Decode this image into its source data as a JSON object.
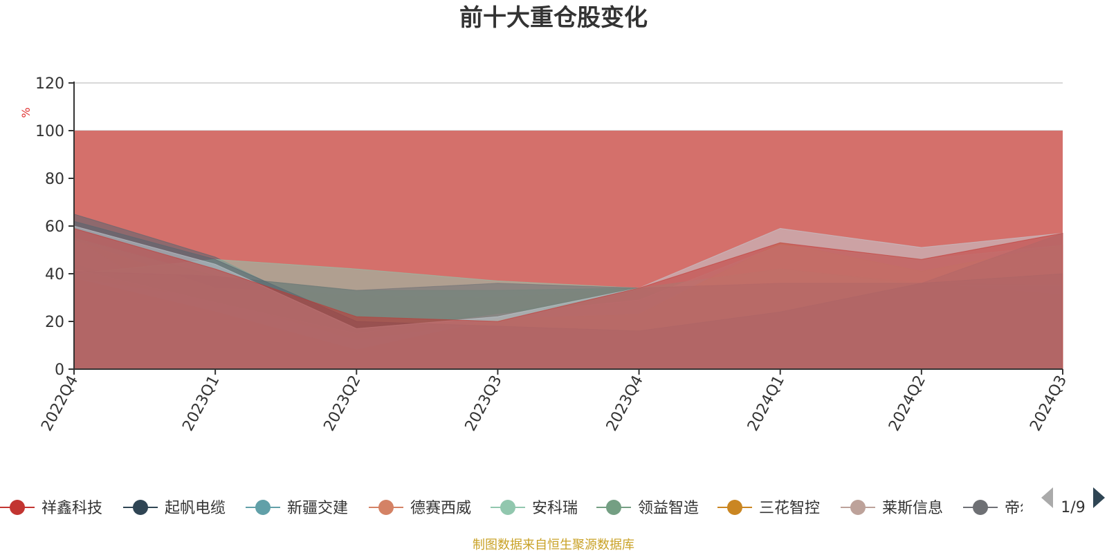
{
  "chart_data": {
    "type": "area",
    "title": "前十大重仓股变化",
    "ylabel": "%",
    "ylim": [
      0,
      120
    ],
    "yticks": [
      0,
      20,
      40,
      60,
      80,
      100,
      120
    ],
    "x": [
      "2022Q4",
      "2023Q1",
      "2023Q2",
      "2023Q3",
      "2023Q4",
      "2024Q1",
      "2024Q2",
      "2024Q3"
    ],
    "total": 100,
    "layers": [
      {
        "color": "#c23531",
        "top": [
          0,
          5,
          4,
          17,
          16,
          13,
          5,
          6
        ]
      },
      {
        "color": "#2f4554",
        "top": [
          5,
          9,
          4,
          11,
          15,
          13,
          16,
          18
        ]
      },
      {
        "color": "#61a0a8",
        "top": [
          0,
          5,
          0,
          4,
          4,
          13,
          16,
          23
        ]
      },
      {
        "color": "#d48265",
        "top": [
          12,
          5,
          8,
          12,
          7,
          19,
          22,
          31
        ]
      },
      {
        "color": "#91c7ae",
        "top": [
          24,
          29,
          8,
          12,
          1,
          13,
          16,
          31
        ]
      },
      {
        "color": "#749f83",
        "top": [
          55,
          18,
          4,
          13,
          0,
          13,
          0,
          6
        ]
      },
      {
        "color": "#ca8622",
        "top": [
          30,
          9,
          4,
          7,
          0,
          13,
          26,
          31
        ]
      },
      {
        "color": "#bda29a",
        "top": [
          18,
          9,
          8,
          11,
          8,
          24,
          36,
          40
        ]
      },
      {
        "color": "#6e7074",
        "top": [
          44,
          28,
          10,
          17,
          1,
          13,
          0,
          6
        ]
      },
      {
        "color": "#546570",
        "top": [
          65,
          47,
          18,
          23,
          34,
          13,
          36,
          35
        ]
      },
      {
        "color": "#c4ccd3",
        "top": [
          38,
          29,
          12,
          20,
          18,
          24,
          36,
          35
        ]
      },
      {
        "color": "#d48265",
        "top": [
          54,
          34,
          31,
          30,
          34,
          38,
          36,
          46
        ]
      },
      {
        "color": "#91c7ae",
        "top": [
          40,
          46,
          42,
          37,
          34,
          42,
          35,
          35
        ]
      },
      {
        "color": "#749f83",
        "top": [
          55,
          39,
          33,
          33,
          34,
          42,
          36,
          31
        ]
      },
      {
        "color": "#ca8622",
        "top": [
          38,
          24,
          8,
          21,
          23,
          53,
          41,
          52
        ]
      },
      {
        "color": "#bda29a",
        "top": [
          42,
          28,
          15,
          23,
          29,
          52,
          46,
          52
        ]
      },
      {
        "color": "#6e7074",
        "top": [
          41,
          39,
          33,
          36,
          34,
          36,
          36,
          57
        ]
      },
      {
        "color": "#546570",
        "top": [
          62,
          46,
          20,
          18,
          16,
          24,
          36,
          40
        ]
      },
      {
        "color": "#c4ccd3",
        "top": [
          60,
          44,
          17,
          22,
          34,
          59,
          51,
          57
        ]
      },
      {
        "color": "#c23531",
        "top": [
          59,
          42,
          22,
          20,
          34,
          53,
          46,
          57
        ]
      }
    ],
    "background_layer": {
      "color": "#d4706b",
      "value": 100
    }
  },
  "legend": {
    "items": [
      {
        "name": "祥鑫科技",
        "color": "#c23531"
      },
      {
        "name": "起帆电缆",
        "color": "#2f4554"
      },
      {
        "name": "新疆交建",
        "color": "#61a0a8"
      },
      {
        "name": "德赛西威",
        "color": "#d48265"
      },
      {
        "name": "安科瑞",
        "color": "#91c7ae"
      },
      {
        "name": "领益智造",
        "color": "#749f83"
      },
      {
        "name": "三花智控",
        "color": "#ca8622"
      },
      {
        "name": "莱斯信息",
        "color": "#bda29a"
      },
      {
        "name": "帝尔",
        "color": "#6e7074"
      }
    ],
    "page": "1/9"
  },
  "footer": "制图数据来自恒生聚源数据库"
}
